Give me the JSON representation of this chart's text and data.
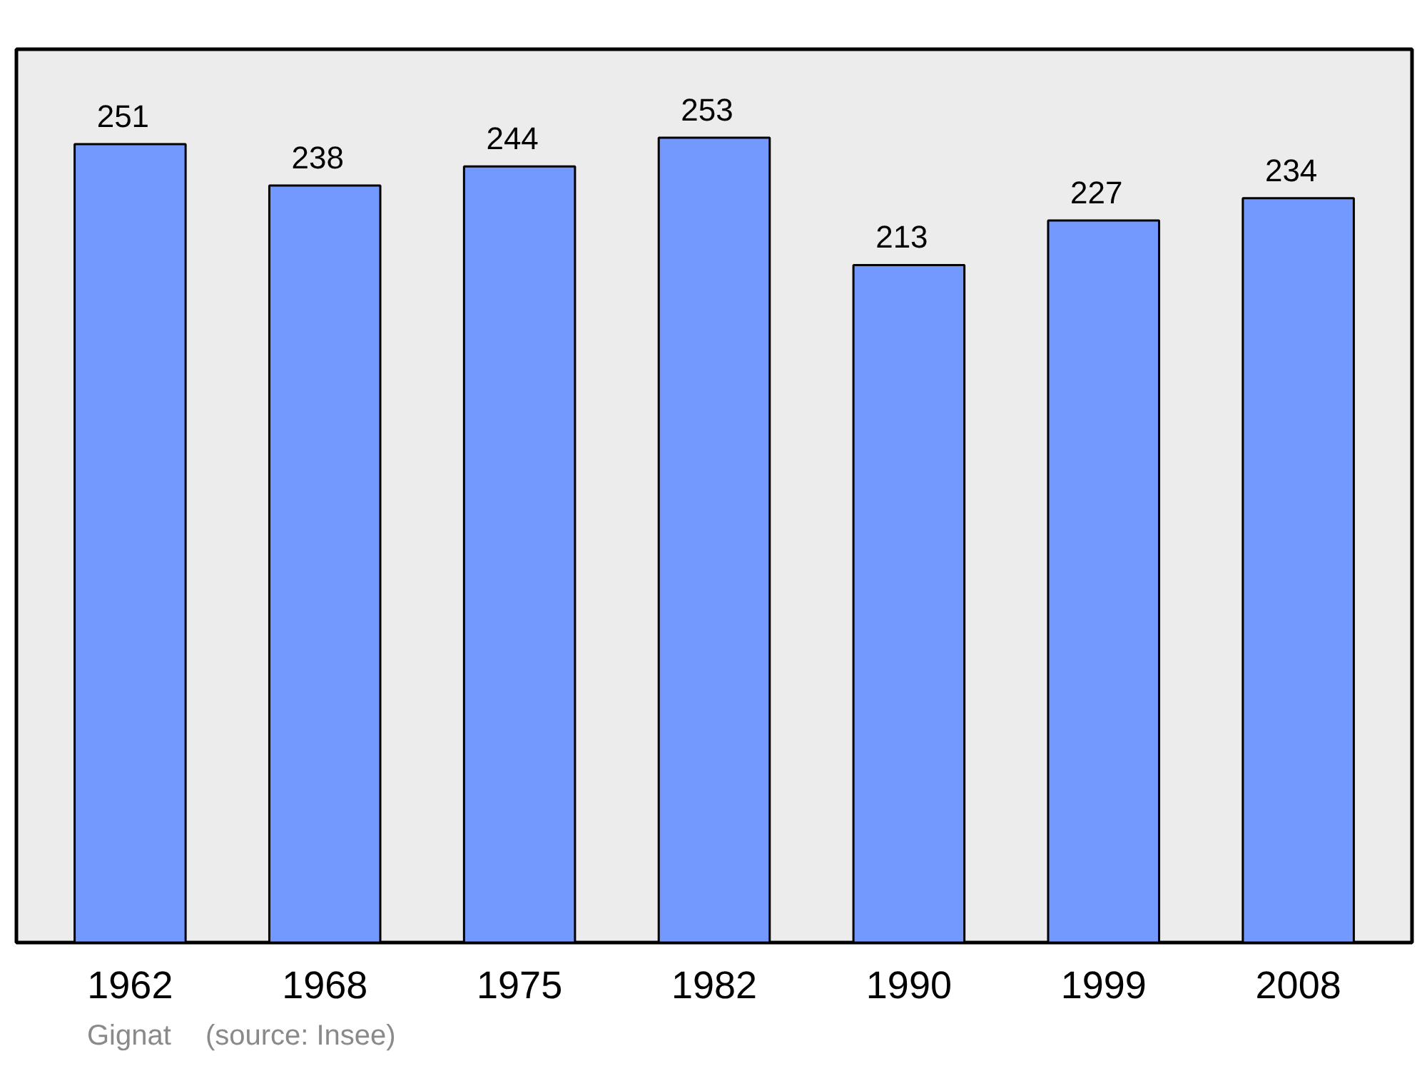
{
  "chart_data": {
    "type": "bar",
    "categories": [
      "1962",
      "1968",
      "1975",
      "1982",
      "1990",
      "1999",
      "2008"
    ],
    "values": [
      251,
      238,
      244,
      253,
      213,
      227,
      234
    ],
    "color": "#7399ff",
    "data_labels": true,
    "grid": false,
    "annotations": [
      "Gignat",
      "(source: Insee)"
    ]
  }
}
